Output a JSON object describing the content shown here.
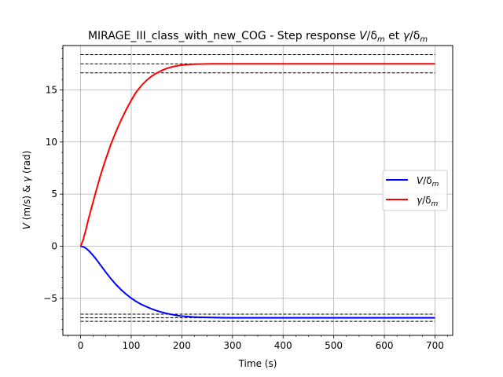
{
  "chart_data": {
    "type": "line",
    "title_main": "MIRAGE_III_class_with_new_COG - Step response ",
    "title_var1": "V",
    "title_sub1": "m",
    "title_var2": "γ",
    "title_sub2": "m",
    "title_et": " et ",
    "xlabel": "Time (s)",
    "ylabel_var1": "V",
    "ylabel_mid": " (m/s) & ",
    "ylabel_var2": "γ",
    "ylabel_end": " (rad)",
    "xlim": [
      -35,
      735
    ],
    "ylim": [
      -8.55,
      19.25
    ],
    "x_ticks": [
      0,
      100,
      200,
      300,
      400,
      500,
      600,
      700
    ],
    "y_ticks": [
      -5,
      0,
      5,
      10,
      15
    ],
    "y_tick_labels": [
      "−5",
      "0",
      "5",
      "10",
      "15"
    ],
    "grid": true,
    "legend_position": "center-right",
    "series": [
      {
        "name_var": "V",
        "name_sub": "m",
        "color": "#0000ff",
        "x": [
          0,
          5,
          10,
          15,
          20,
          25,
          30,
          40,
          50,
          60,
          70,
          80,
          90,
          100,
          110,
          120,
          130,
          140,
          150,
          160,
          170,
          180,
          190,
          200,
          220,
          240,
          260,
          280,
          300,
          350,
          400,
          450,
          500,
          550,
          600,
          650,
          700
        ],
        "y": [
          0,
          -0.05,
          -0.18,
          -0.38,
          -0.62,
          -0.9,
          -1.2,
          -1.85,
          -2.5,
          -3.12,
          -3.68,
          -4.17,
          -4.6,
          -4.98,
          -5.3,
          -5.58,
          -5.8,
          -6.0,
          -6.18,
          -6.32,
          -6.45,
          -6.55,
          -6.64,
          -6.7,
          -6.78,
          -6.82,
          -6.84,
          -6.85,
          -6.86,
          -6.86,
          -6.86,
          -6.86,
          -6.86,
          -6.86,
          -6.86,
          -6.86,
          -6.86
        ]
      },
      {
        "name_var": "γ",
        "name_sub": "m",
        "color": "#ff0000",
        "x": [
          0,
          5,
          10,
          15,
          20,
          25,
          30,
          40,
          50,
          60,
          70,
          80,
          90,
          100,
          110,
          120,
          130,
          140,
          150,
          160,
          170,
          180,
          190,
          200,
          220,
          240,
          260,
          280,
          300,
          350,
          400,
          450,
          500,
          550,
          600,
          650,
          700
        ],
        "y": [
          0,
          0.6,
          1.5,
          2.5,
          3.4,
          4.3,
          5.2,
          6.9,
          8.4,
          9.8,
          11.0,
          12.1,
          13.1,
          14.0,
          14.8,
          15.4,
          15.9,
          16.3,
          16.6,
          16.85,
          17.05,
          17.2,
          17.3,
          17.38,
          17.45,
          17.48,
          17.5,
          17.5,
          17.5,
          17.5,
          17.5,
          17.5,
          17.5,
          17.5,
          17.5,
          17.5,
          17.5
        ]
      }
    ],
    "reference_lines": [
      {
        "y": 18.38,
        "x_range": [
          0,
          700
        ]
      },
      {
        "y": 17.5,
        "x_range": [
          0,
          700
        ]
      },
      {
        "y": 16.63,
        "x_range": [
          0,
          700
        ]
      },
      {
        "y": -6.52,
        "x_range": [
          0,
          700
        ]
      },
      {
        "y": -6.86,
        "x_range": [
          0,
          700
        ]
      },
      {
        "y": -7.2,
        "x_range": [
          0,
          700
        ]
      }
    ]
  }
}
